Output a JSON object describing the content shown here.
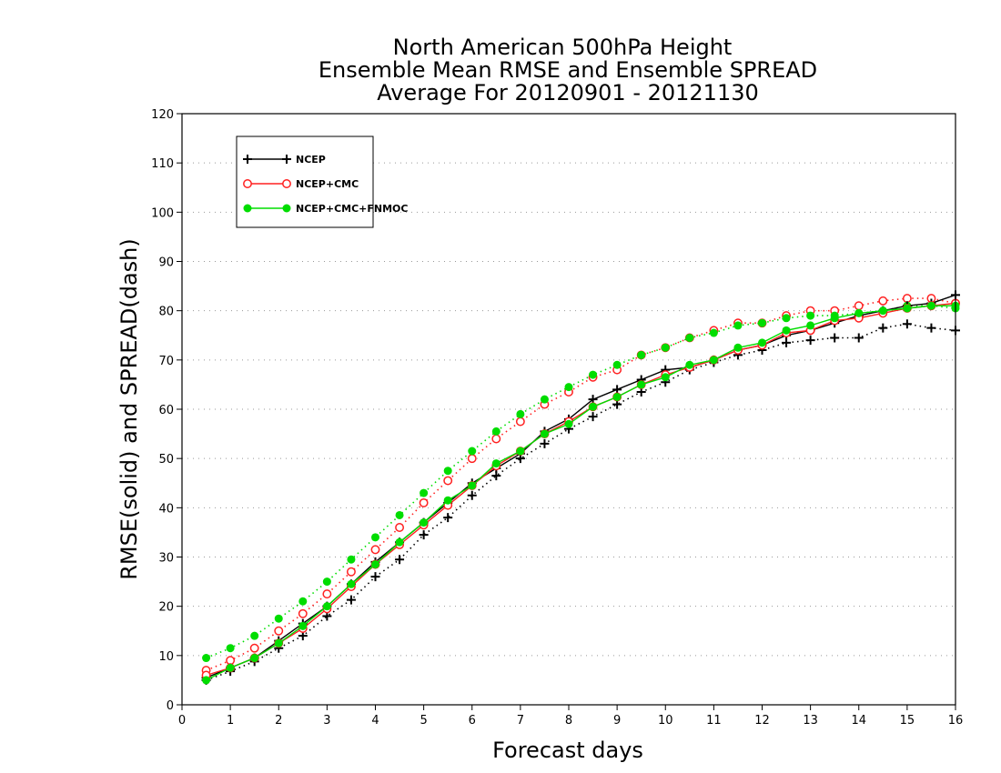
{
  "chart_data": {
    "type": "line",
    "title_lines": [
      "North American 500hPa Height",
      "Ensemble Mean RMSE and Ensemble SPREAD",
      "Average For 20120901 - 20121130"
    ],
    "xlabel": "Forecast days",
    "ylabel": "RMSE(solid) and SPREAD(dash)",
    "xlim": [
      0,
      16
    ],
    "ylim": [
      0,
      120
    ],
    "xticks": [
      0,
      1,
      2,
      3,
      4,
      5,
      6,
      7,
      8,
      9,
      10,
      11,
      12,
      13,
      14,
      15,
      16
    ],
    "yticks": [
      0,
      10,
      20,
      30,
      40,
      50,
      60,
      70,
      80,
      90,
      100,
      110,
      120
    ],
    "grid": "horizontal dotted",
    "legend_position": "top-left",
    "x": [
      0.5,
      1,
      1.5,
      2,
      2.5,
      3,
      3.5,
      4,
      4.5,
      5,
      5.5,
      6,
      6.5,
      7,
      7.5,
      8,
      8.5,
      9,
      9.5,
      10,
      10.5,
      11,
      11.5,
      12,
      12.5,
      13,
      13.5,
      14,
      14.5,
      15,
      15.5,
      16
    ],
    "series": [
      {
        "name": "NCEP",
        "kind": "rmse",
        "color": "#000000",
        "marker": "plus",
        "values": [
          5.5,
          7.5,
          9.5,
          13,
          16.5,
          20,
          24.5,
          29,
          33,
          37,
          41,
          45,
          48,
          51,
          55.5,
          58,
          62,
          64,
          66,
          68,
          68.5,
          70,
          72,
          73,
          75,
          76,
          77.5,
          79,
          80,
          81,
          81.5,
          83.2
        ]
      },
      {
        "name": "NCEP+CMC",
        "kind": "rmse",
        "color": "#ff2020",
        "marker": "open-circle",
        "values": [
          6,
          7.5,
          9.5,
          12.5,
          15.5,
          19.5,
          24,
          28.5,
          32.5,
          36.5,
          40.5,
          44.5,
          48.5,
          51.5,
          55,
          57.5,
          60.5,
          62.5,
          65,
          67,
          68.5,
          70,
          72,
          73,
          75.5,
          76,
          78,
          78.5,
          79.5,
          80.5,
          81,
          81.5
        ]
      },
      {
        "name": "NCEP+CMC+FNMOC",
        "kind": "rmse",
        "color": "#00dd00",
        "marker": "filled-circle",
        "values": [
          5,
          7.5,
          9.5,
          12.5,
          16,
          20,
          24.5,
          28.5,
          33,
          37,
          41.5,
          44.5,
          49,
          51.5,
          55,
          57,
          60.5,
          62.5,
          65,
          66.5,
          69,
          70,
          72.5,
          73.5,
          76,
          77,
          78.5,
          79.5,
          80,
          80.5,
          81,
          81
        ]
      },
      {
        "name": "NCEP",
        "kind": "spread",
        "color": "#000000",
        "marker": "plus",
        "values": [
          5,
          6.8,
          8.8,
          11.5,
          14,
          18,
          21.3,
          26,
          29.5,
          34.5,
          38,
          42.5,
          46.5,
          50,
          53,
          56,
          58.5,
          61,
          63.5,
          65.5,
          68,
          69.5,
          71,
          72,
          73.5,
          74,
          74.5,
          74.5,
          76.5,
          77.3,
          76.5,
          76
        ]
      },
      {
        "name": "NCEP+CMC",
        "kind": "spread",
        "color": "#ff2020",
        "marker": "open-circle",
        "values": [
          7,
          9,
          11.5,
          15,
          18.5,
          22.5,
          27,
          31.5,
          36,
          41,
          45.5,
          50,
          54,
          57.5,
          61,
          63.5,
          66.5,
          68,
          71,
          72.5,
          74.5,
          76,
          77.5,
          77.5,
          79,
          80,
          80,
          81,
          82,
          82.5,
          82.5,
          81.5
        ]
      },
      {
        "name": "NCEP+CMC+FNMOC",
        "kind": "spread",
        "color": "#00dd00",
        "marker": "filled-circle",
        "values": [
          9.5,
          11.5,
          14,
          17.5,
          21,
          25,
          29.5,
          34,
          38.5,
          43,
          47.5,
          51.5,
          55.5,
          59,
          62,
          64.5,
          67,
          69,
          71,
          72.5,
          74.5,
          75.5,
          77,
          77.5,
          78.5,
          79,
          79,
          79.5,
          80,
          81,
          81,
          80.5
        ]
      }
    ],
    "legend": [
      {
        "label": "NCEP",
        "color": "#000000",
        "marker": "plus"
      },
      {
        "label": "NCEP+CMC",
        "color": "#ff2020",
        "marker": "open-circle"
      },
      {
        "label": "NCEP+CMC+FNMOC",
        "color": "#00dd00",
        "marker": "filled-circle"
      }
    ]
  }
}
